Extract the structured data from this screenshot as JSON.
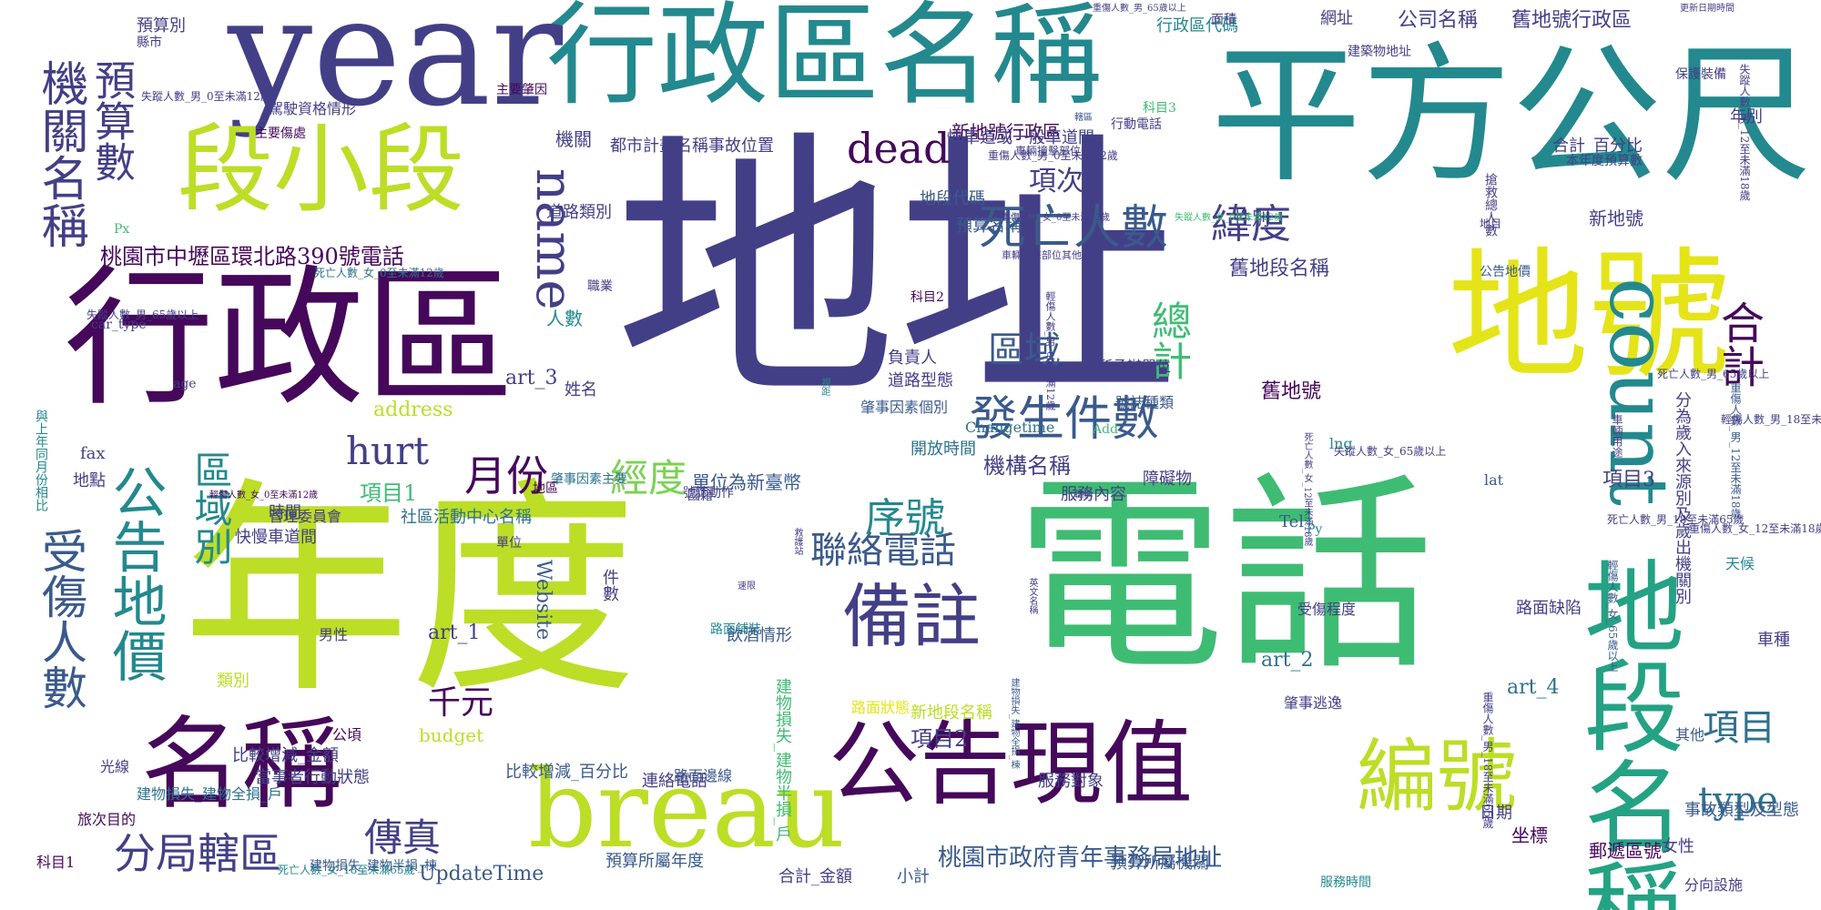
{
  "words": [
    "地址",
    "年度",
    "電話",
    "平方公尺",
    "行政區名稱",
    "year",
    "行政區",
    "地號",
    "段小段",
    "地段名稱",
    "count",
    "公告現值",
    "名稱",
    "breau",
    "備註",
    "編號",
    "公告地價",
    "機關名稱",
    "預算數",
    "死亡人數",
    "發生件數",
    "受傷人數",
    "區域別",
    "分局轄區",
    "聯絡電話",
    "序號",
    "月份",
    "經度",
    "緯度",
    "合計",
    "總計",
    "區域",
    "項目",
    "name",
    "hurt",
    "dead",
    "傳真",
    "千元",
    "type",
    "桃園市中壢區環北路390號電話",
    "桃園市政府青年事務局地址",
    "項次",
    "舊地段名稱",
    "舊地號",
    "新地號行政區",
    "舊地號行政區",
    "公司名稱",
    "機構名稱",
    "編號",
    "address",
    "Website",
    "art_1",
    "art_2",
    "art_3",
    "art_4",
    "項目1",
    "項目2",
    "項目3",
    "budget",
    "UpdateTime",
    "人數",
    "姓名",
    "負責人",
    "道路型態",
    "道路類別",
    "地段代碼",
    "預算名稱",
    "都市計畫名稱事故位置",
    "快車道或一般車道間",
    "機關",
    "性別",
    "行政區代碼",
    "網址",
    "年別",
    "面積",
    "建築物地址",
    "保護裝備",
    "主要肇因",
    "駕駛資格情形",
    "主要傷處",
    "預算別",
    "縣市",
    "時間",
    "快慢車道間",
    "地點",
    "地區",
    "管理委員會",
    "社區活動中心名稱",
    "單位為新臺幣",
    "開放時間",
    "服務內容",
    "公所承辦單位",
    "號誌種類",
    "號誌動作",
    "肇事因素個別",
    "肇事因素主要",
    "肇事逃逸",
    "路面狀態",
    "路面缺陷",
    "路面邊線",
    "路面鋪裝",
    "障礙物",
    "車種",
    "事故類型及型態",
    "分向設施",
    "郵遞區號",
    "日期",
    "坐標",
    "女性",
    "男性",
    "其他",
    "天候",
    "光線",
    "旅次目的",
    "科目1",
    "科目2",
    "科目3",
    "公頃",
    "飲酒情形",
    "受傷程度",
    "職業",
    "類別",
    "單位",
    "國籍",
    "件數",
    "小計",
    "合計_金額",
    "合計_百分比",
    "比較增減_金額",
    "比較增減_百分比",
    "預算所屬年度",
    "預算所屬機關",
    "本年度預算數",
    "當事者行動狀態",
    "連絡電話",
    "服務對象",
    "服務時間",
    "新地段名稱",
    "新地號",
    "Tel",
    "lng",
    "lat",
    "fax",
    "age",
    "Px",
    "Py",
    "Add",
    "Changetime",
    "行動電話",
    "更新日期時間",
    "分為歲入來源別及歲出機關別",
    "與上年同月份相比",
    "失蹤人數_女_0至未滿12歲",
    "失蹤人數_男_0至未滿12歲",
    "失蹤人數_男_65歲以上",
    "失蹤人數_女_65歲以上",
    "失蹤人數_男_12至未滿18歲",
    "重傷人數_男_65歲以上",
    "重傷人數_男_12至未滿18歲",
    "重傷人數_女_12至未滿18歲",
    "重傷人數_女_0至未滿12歲",
    "重傷人數_男_0至未滿12歲",
    "重傷人數_男_18至未滿65歲",
    "死亡人數_女_18至未滿65歲",
    "死亡人數_女_12至未滿18歲",
    "死亡人數_女_0至未滿12歲",
    "死亡人數_男_65歲以上",
    "死亡人數_男_18至未滿65歲",
    "輕傷人數_女_65歲以上",
    "輕傷人數_女_0至未滿12歲",
    "輕傷人數_男_0至未滿12歲",
    "輕傷人數_男_18至未滿65歲",
    "車輛撞擊部位最初",
    "車輛撞擊部位其他",
    "車輛用途",
    "建物損失_建物全損_戶",
    "建物損失_建物半損_棟",
    "建物損失_建物半損_戶",
    "建物損失_建物全損_棟",
    "救護站",
    "英文名稱",
    "視距",
    "速限",
    "轄區",
    "職稱",
    "公告地價",
    "地目",
    "car_type",
    "搶救總人數"
  ],
  "palette": [
    "#45085a",
    "#433f87",
    "#3a5a8c",
    "#2e718e",
    "#23898e",
    "#24a284",
    "#3fbc73",
    "#7ad251",
    "#bcde26",
    "#e5e419"
  ]
}
